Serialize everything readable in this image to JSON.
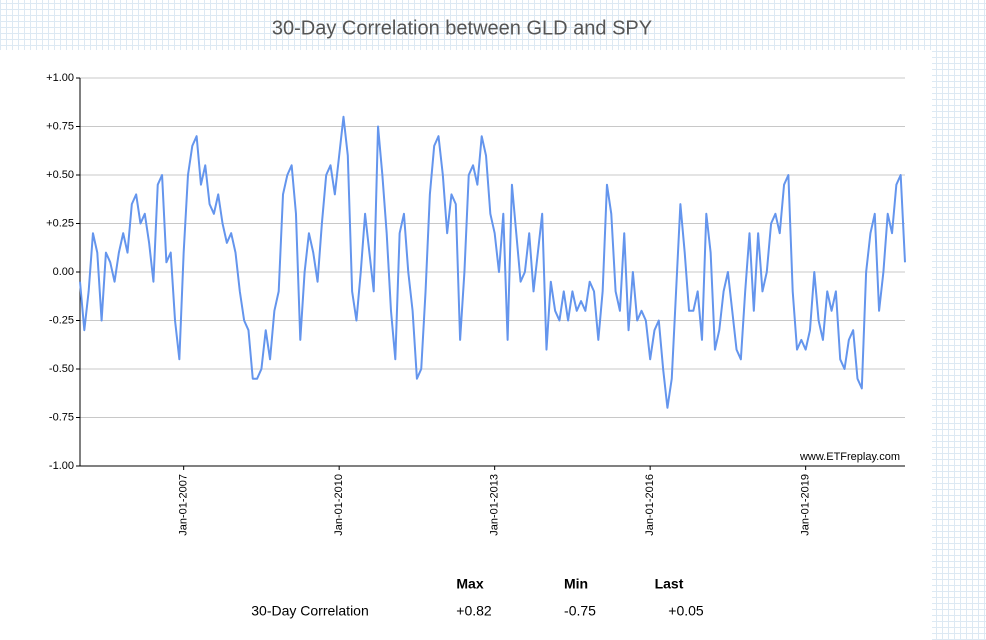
{
  "chart_data": {
    "type": "line",
    "title": "30-Day Correlation between GLD and SPY",
    "source": "www.ETFreplay.com",
    "color": "#6495ed",
    "grid": true,
    "ylim": [
      -1,
      1
    ],
    "yticks": [
      {
        "value": -1,
        "label": "-1.00"
      },
      {
        "value": -0.75,
        "label": "-0.75"
      },
      {
        "value": -0.5,
        "label": "-0.50"
      },
      {
        "value": -0.25,
        "label": "-0.25"
      },
      {
        "value": 0,
        "label": "0.00"
      },
      {
        "value": 0.25,
        "label": "+0.25"
      },
      {
        "value": 0.5,
        "label": "+0.50"
      },
      {
        "value": 0.75,
        "label": "+0.75"
      },
      {
        "value": 1,
        "label": "+1.00"
      }
    ],
    "xlim": [
      "2005-01",
      "2020-12"
    ],
    "xticks": [
      {
        "value": "2007-01",
        "label": "Jan-01-2007"
      },
      {
        "value": "2010-01",
        "label": "Jan-01-2010"
      },
      {
        "value": "2013-01",
        "label": "Jan-01-2013"
      },
      {
        "value": "2016-01",
        "label": "Jan-01-2016"
      },
      {
        "value": "2019-01",
        "label": "Jan-01-2019"
      }
    ],
    "x": [
      "2005-01",
      "2005-02",
      "2005-03",
      "2005-04",
      "2005-05",
      "2005-06",
      "2005-07",
      "2005-08",
      "2005-09",
      "2005-10",
      "2005-11",
      "2005-12",
      "2006-01",
      "2006-02",
      "2006-03",
      "2006-04",
      "2006-05",
      "2006-06",
      "2006-07",
      "2006-08",
      "2006-09",
      "2006-10",
      "2006-11",
      "2006-12",
      "2007-01",
      "2007-02",
      "2007-03",
      "2007-04",
      "2007-05",
      "2007-06",
      "2007-07",
      "2007-08",
      "2007-09",
      "2007-10",
      "2007-11",
      "2007-12",
      "2008-01",
      "2008-02",
      "2008-03",
      "2008-04",
      "2008-05",
      "2008-06",
      "2008-07",
      "2008-08",
      "2008-09",
      "2008-10",
      "2008-11",
      "2008-12",
      "2009-01",
      "2009-02",
      "2009-03",
      "2009-04",
      "2009-05",
      "2009-06",
      "2009-07",
      "2009-08",
      "2009-09",
      "2009-10",
      "2009-11",
      "2009-12",
      "2010-01",
      "2010-02",
      "2010-03",
      "2010-04",
      "2010-05",
      "2010-06",
      "2010-07",
      "2010-08",
      "2010-09",
      "2010-10",
      "2010-11",
      "2010-12",
      "2011-01",
      "2011-02",
      "2011-03",
      "2011-04",
      "2011-05",
      "2011-06",
      "2011-07",
      "2011-08",
      "2011-09",
      "2011-10",
      "2011-11",
      "2011-12",
      "2012-01",
      "2012-02",
      "2012-03",
      "2012-04",
      "2012-05",
      "2012-06",
      "2012-07",
      "2012-08",
      "2012-09",
      "2012-10",
      "2012-11",
      "2012-12",
      "2013-01",
      "2013-02",
      "2013-03",
      "2013-04",
      "2013-05",
      "2013-06",
      "2013-07",
      "2013-08",
      "2013-09",
      "2013-10",
      "2013-11",
      "2013-12",
      "2014-01",
      "2014-02",
      "2014-03",
      "2014-04",
      "2014-05",
      "2014-06",
      "2014-07",
      "2014-08",
      "2014-09",
      "2014-10",
      "2014-11",
      "2014-12",
      "2015-01",
      "2015-02",
      "2015-03",
      "2015-04",
      "2015-05",
      "2015-06",
      "2015-07",
      "2015-08",
      "2015-09",
      "2015-10",
      "2015-11",
      "2015-12",
      "2016-01",
      "2016-02",
      "2016-03",
      "2016-04",
      "2016-05",
      "2016-06",
      "2016-07",
      "2016-08",
      "2016-09",
      "2016-10",
      "2016-11",
      "2016-12",
      "2017-01",
      "2017-02",
      "2017-03",
      "2017-04",
      "2017-05",
      "2017-06",
      "2017-07",
      "2017-08",
      "2017-09",
      "2017-10",
      "2017-11",
      "2017-12",
      "2018-01",
      "2018-02",
      "2018-03",
      "2018-04",
      "2018-05",
      "2018-06",
      "2018-07",
      "2018-08",
      "2018-09",
      "2018-10",
      "2018-11",
      "2018-12",
      "2019-01",
      "2019-02",
      "2019-03",
      "2019-04",
      "2019-05",
      "2019-06",
      "2019-07",
      "2019-08",
      "2019-09",
      "2019-10",
      "2019-11",
      "2019-12",
      "2020-01",
      "2020-02",
      "2020-03",
      "2020-04",
      "2020-05",
      "2020-06",
      "2020-07",
      "2020-08",
      "2020-09",
      "2020-10",
      "2020-11",
      "2020-12"
    ],
    "values": [
      -0.05,
      -0.3,
      -0.1,
      0.2,
      0.1,
      -0.25,
      0.1,
      0.05,
      -0.05,
      0.1,
      0.2,
      0.1,
      0.35,
      0.4,
      0.25,
      0.3,
      0.15,
      -0.05,
      0.45,
      0.5,
      0.05,
      0.1,
      -0.25,
      -0.45,
      0.1,
      0.5,
      0.65,
      0.7,
      0.45,
      0.55,
      0.35,
      0.3,
      0.4,
      0.25,
      0.15,
      0.2,
      0.1,
      -0.1,
      -0.25,
      -0.3,
      -0.55,
      -0.55,
      -0.5,
      -0.3,
      -0.45,
      -0.2,
      -0.1,
      0.4,
      0.5,
      0.55,
      0.3,
      -0.35,
      0.0,
      0.2,
      0.1,
      -0.05,
      0.25,
      0.5,
      0.55,
      0.4,
      0.6,
      0.8,
      0.6,
      -0.1,
      -0.25,
      0.0,
      0.3,
      0.1,
      -0.1,
      0.75,
      0.5,
      0.2,
      -0.2,
      -0.45,
      0.2,
      0.3,
      0.0,
      -0.2,
      -0.55,
      -0.5,
      -0.1,
      0.4,
      0.65,
      0.7,
      0.5,
      0.2,
      0.4,
      0.35,
      -0.35,
      0.0,
      0.5,
      0.55,
      0.45,
      0.7,
      0.6,
      0.3,
      0.2,
      0.0,
      0.3,
      -0.35,
      0.45,
      0.2,
      -0.05,
      0.0,
      0.2,
      -0.1,
      0.1,
      0.3,
      -0.4,
      -0.05,
      -0.2,
      -0.25,
      -0.1,
      -0.25,
      -0.1,
      -0.2,
      -0.15,
      -0.2,
      -0.05,
      -0.1,
      -0.35,
      -0.1,
      0.45,
      0.3,
      -0.1,
      -0.2,
      0.2,
      -0.3,
      0.0,
      -0.25,
      -0.2,
      -0.25,
      -0.45,
      -0.3,
      -0.25,
      -0.5,
      -0.7,
      -0.55,
      -0.1,
      0.35,
      0.1,
      -0.2,
      -0.2,
      -0.1,
      -0.35,
      0.3,
      0.1,
      -0.4,
      -0.3,
      -0.1,
      0.0,
      -0.2,
      -0.4,
      -0.45,
      -0.1,
      0.2,
      -0.2,
      0.2,
      -0.1,
      0.0,
      0.25,
      0.3,
      0.2,
      0.45,
      0.5,
      -0.1,
      -0.4,
      -0.35,
      -0.4,
      -0.3,
      0.0,
      -0.25,
      -0.35,
      -0.1,
      -0.2,
      -0.1,
      -0.45,
      -0.5,
      -0.35,
      -0.3,
      -0.55,
      -0.6,
      0.0,
      0.2,
      0.3,
      -0.2,
      0.0,
      0.3,
      0.2,
      0.45,
      0.5,
      0.05
    ]
  },
  "summary": {
    "columns": [
      "Max",
      "Min",
      "Last"
    ],
    "row_label": "30-Day Correlation",
    "cells": [
      "+0.82",
      "-0.75",
      "+0.05"
    ]
  }
}
